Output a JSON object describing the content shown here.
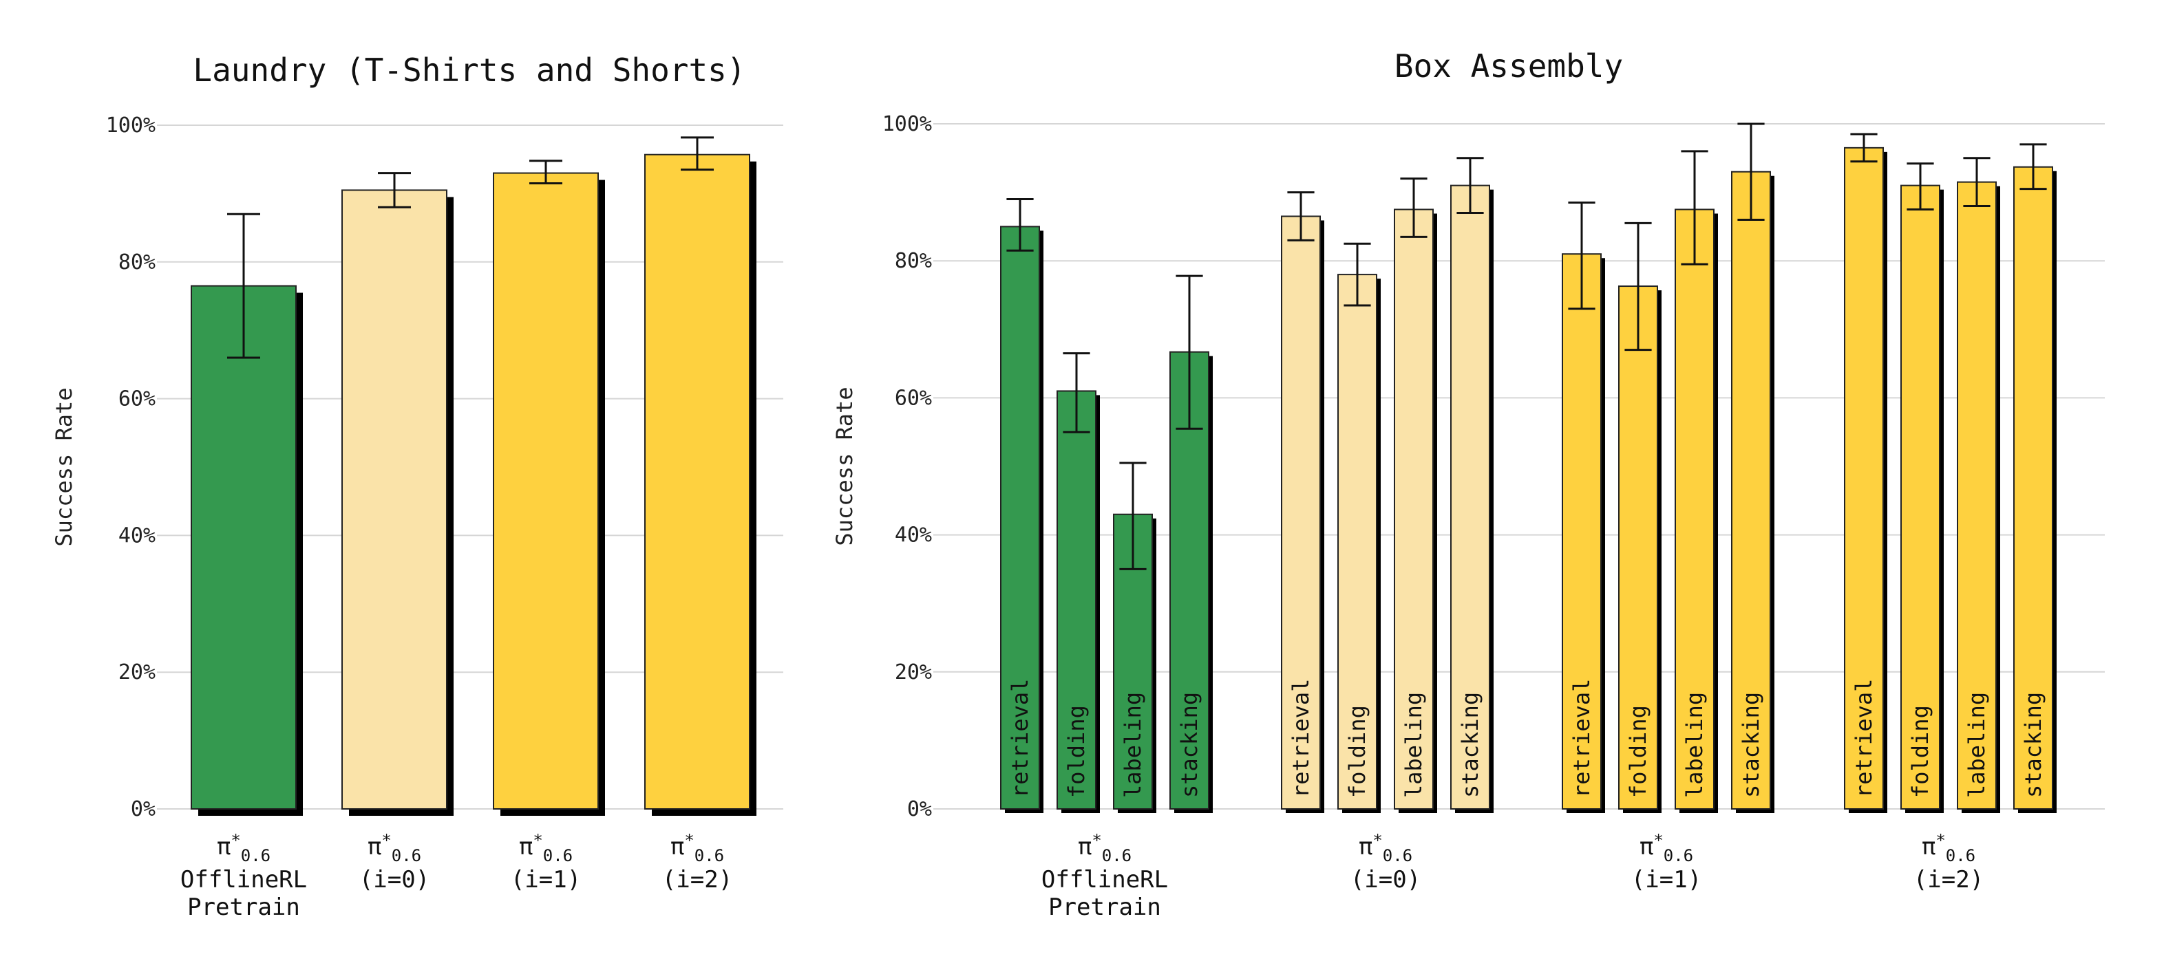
{
  "chart_data": [
    {
      "type": "bar",
      "title": "Laundry (T-Shirts and Shorts)",
      "ylabel": "Success Rate",
      "ylim": [
        0,
        100
      ],
      "yticks": [
        "0%",
        "20%",
        "40%",
        "60%",
        "80%",
        "100%"
      ],
      "grid": true,
      "categories": [
        {
          "symbol": "π",
          "sup": "*",
          "sub": "0.6",
          "lines": [
            "OfflineRL",
            "Pretrain"
          ]
        },
        {
          "symbol": "π",
          "sup": "*",
          "sub": "0.6",
          "lines": [
            "(i=0)"
          ]
        },
        {
          "symbol": "π",
          "sup": "*",
          "sub": "0.6",
          "lines": [
            "(i=1)"
          ]
        },
        {
          "symbol": "π",
          "sup": "*",
          "sub": "0.6",
          "lines": [
            "(i=2)"
          ]
        }
      ],
      "values": [
        76.5,
        90.5,
        93.0,
        95.7
      ],
      "error_low": [
        66.0,
        88.0,
        91.5,
        93.5
      ],
      "error_high": [
        87.0,
        93.0,
        94.8,
        98.2
      ],
      "colors": [
        "#34994f",
        "#fae3a9",
        "#fed13f",
        "#fed13f"
      ]
    },
    {
      "type": "bar",
      "title": "Box Assembly",
      "ylabel": "Success Rate",
      "ylim": [
        0,
        100
      ],
      "yticks": [
        "0%",
        "20%",
        "40%",
        "60%",
        "80%",
        "100%"
      ],
      "grid": true,
      "categories": [
        {
          "symbol": "π",
          "sup": "*",
          "sub": "0.6",
          "lines": [
            "OfflineRL",
            "Pretrain"
          ]
        },
        {
          "symbol": "π",
          "sup": "*",
          "sub": "0.6",
          "lines": [
            "(i=0)"
          ]
        },
        {
          "symbol": "π",
          "sup": "*",
          "sub": "0.6",
          "lines": [
            "(i=1)"
          ]
        },
        {
          "symbol": "π",
          "sup": "*",
          "sub": "0.6",
          "lines": [
            "(i=2)"
          ]
        }
      ],
      "subcategories": [
        "retrieval",
        "folding",
        "labeling",
        "stacking"
      ],
      "colors": [
        "#34994f",
        "#fae3a9",
        "#fed13f",
        "#fed13f"
      ],
      "series": [
        {
          "values": [
            85.0,
            61.0,
            43.0,
            66.7
          ],
          "error_low": [
            81.5,
            55.0,
            35.0,
            55.5
          ],
          "error_high": [
            89.0,
            66.5,
            50.5,
            77.8
          ]
        },
        {
          "values": [
            86.5,
            78.0,
            87.5,
            91.0
          ],
          "error_low": [
            83.0,
            73.5,
            83.5,
            87.0
          ],
          "error_high": [
            90.0,
            82.5,
            92.0,
            95.0
          ]
        },
        {
          "values": [
            81.0,
            76.3,
            87.5,
            93.0
          ],
          "error_low": [
            73.0,
            67.0,
            79.5,
            86.0
          ],
          "error_high": [
            88.5,
            85.5,
            96.0,
            100.0
          ]
        },
        {
          "values": [
            96.5,
            91.0,
            91.5,
            93.7
          ],
          "error_low": [
            94.5,
            87.5,
            88.0,
            90.5
          ],
          "error_high": [
            98.5,
            94.2,
            95.0,
            97.0
          ]
        }
      ]
    }
  ]
}
